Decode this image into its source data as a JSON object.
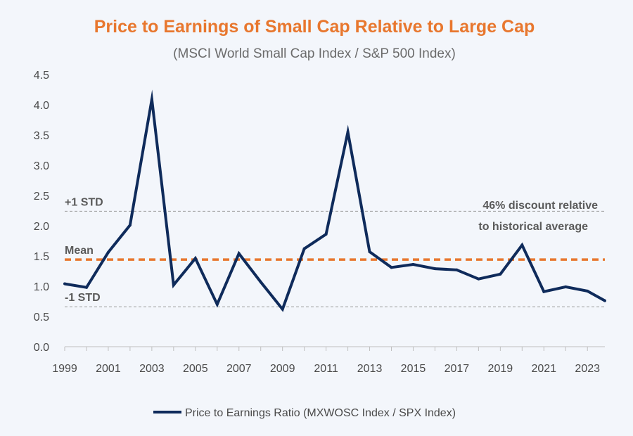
{
  "chart_data": {
    "type": "line",
    "title": "Price to Earnings of Small Cap Relative to Large Cap",
    "subtitle": "(MSCI World Small Cap Index / S&P 500 Index)",
    "xlabel": "",
    "ylabel": "",
    "ylim": [
      0,
      4.5
    ],
    "xlim": [
      1999,
      2023.8
    ],
    "y_ticks": [
      "0.0",
      "0.5",
      "1.0",
      "1.5",
      "2.0",
      "2.5",
      "3.0",
      "3.5",
      "4.0",
      "4.5"
    ],
    "x_ticks": [
      "1999",
      "2001",
      "2003",
      "2005",
      "2007",
      "2009",
      "2011",
      "2013",
      "2015",
      "2017",
      "2019",
      "2021",
      "2023"
    ],
    "grid": false,
    "legend_position": "bottom",
    "series": [
      {
        "name": "Price to Earnings Ratio (MXWOSC Index / SPX Index)",
        "color": "#0f2b5b",
        "x": [
          1999,
          2000,
          2001,
          2002,
          2003,
          2004,
          2005,
          2006,
          2007,
          2008,
          2009,
          2010,
          2011,
          2012,
          2013,
          2014,
          2015,
          2016,
          2017,
          2018,
          2019,
          2020,
          2021,
          2022,
          2023,
          2023.8
        ],
        "values": [
          1.04,
          0.98,
          1.56,
          2.01,
          4.09,
          1.02,
          1.46,
          0.7,
          1.54,
          1.07,
          0.62,
          1.62,
          1.86,
          3.55,
          1.57,
          1.31,
          1.36,
          1.29,
          1.27,
          1.12,
          1.2,
          1.68,
          0.91,
          0.99,
          0.92,
          0.76
        ]
      }
    ],
    "reference_lines": [
      {
        "label": "+1 STD",
        "value": 2.24,
        "style": "dashed-thin",
        "color": "#9a9a9a"
      },
      {
        "label": "Mean",
        "value": 1.44,
        "style": "dashed-thick",
        "color": "#e8772e"
      },
      {
        "label": "-1 STD",
        "value": 0.66,
        "style": "dashed-thin",
        "color": "#9a9a9a"
      }
    ],
    "annotation": {
      "line1": "46% discount relative",
      "line2": "to historical average"
    }
  }
}
